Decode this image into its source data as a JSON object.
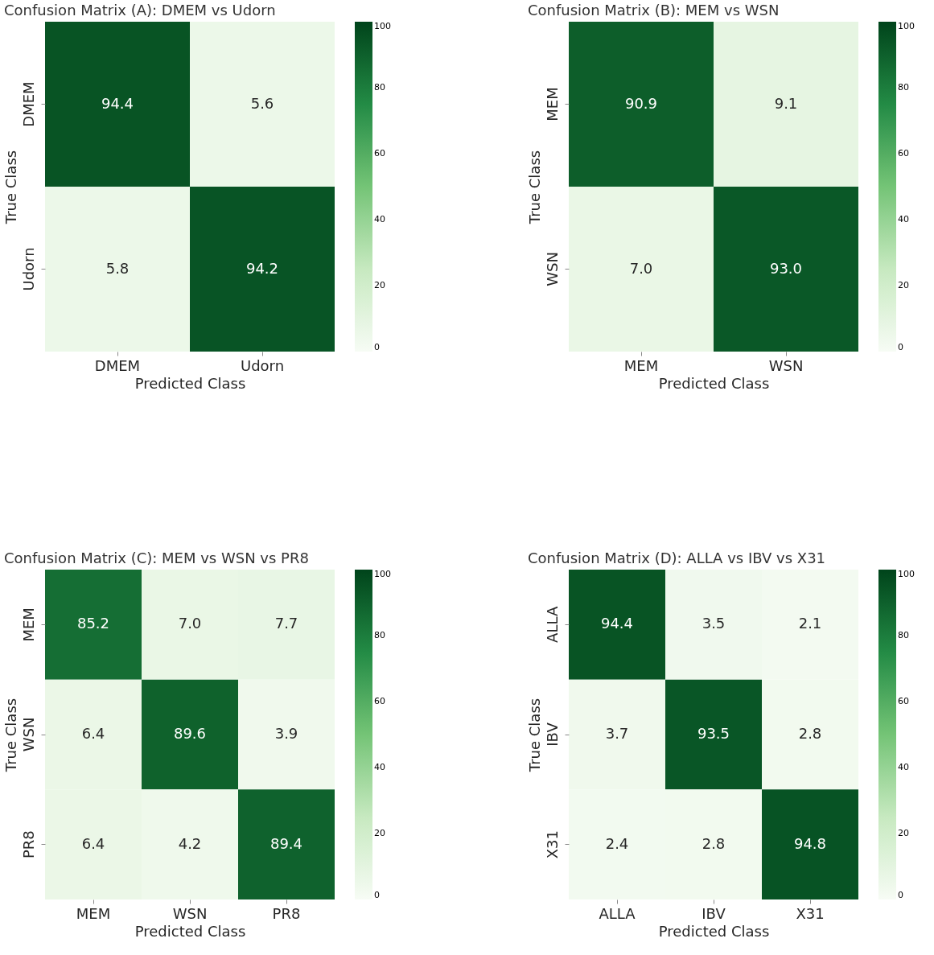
{
  "chart_data": [
    {
      "type": "heatmap",
      "title": "Confusion Matrix (A): DMEM vs Udorn",
      "xlabel": "Predicted Class",
      "ylabel": "True Class",
      "categories": [
        "DMEM",
        "Udorn"
      ],
      "y_categories": [
        "DMEM",
        "Udorn"
      ],
      "cells": [
        [
          94.4,
          5.6
        ],
        [
          5.8,
          94.2
        ]
      ],
      "cell_labels": [
        [
          "94.4",
          "5.6"
        ],
        [
          "5.8",
          "94.2"
        ]
      ],
      "clim": [
        0,
        100
      ],
      "cticks": [
        0,
        20,
        40,
        60,
        80,
        100
      ],
      "data_labels": true,
      "grid": false
    },
    {
      "type": "heatmap",
      "title": "Confusion Matrix (B): MEM vs WSN",
      "xlabel": "Predicted Class",
      "ylabel": "True Class",
      "categories": [
        "MEM",
        "WSN"
      ],
      "y_categories": [
        "MEM",
        "WSN"
      ],
      "cells": [
        [
          90.9,
          9.1
        ],
        [
          7.0,
          93.0
        ]
      ],
      "cell_labels": [
        [
          "90.9",
          "9.1"
        ],
        [
          "7.0",
          "93.0"
        ]
      ],
      "clim": [
        0,
        100
      ],
      "cticks": [
        0,
        20,
        40,
        60,
        80,
        100
      ],
      "data_labels": true,
      "grid": false
    },
    {
      "type": "heatmap",
      "title": "Confusion Matrix (C): MEM vs WSN vs PR8",
      "xlabel": "Predicted Class",
      "ylabel": "True Class",
      "categories": [
        "MEM",
        "WSN",
        "PR8"
      ],
      "y_categories": [
        "MEM",
        "WSN",
        "PR8"
      ],
      "cells": [
        [
          85.2,
          7.0,
          7.7
        ],
        [
          6.4,
          89.6,
          3.9
        ],
        [
          6.4,
          4.2,
          89.4
        ]
      ],
      "cell_labels": [
        [
          "85.2",
          "7.0",
          "7.7"
        ],
        [
          "6.4",
          "89.6",
          "3.9"
        ],
        [
          "6.4",
          "4.2",
          "89.4"
        ]
      ],
      "clim": [
        0,
        100
      ],
      "cticks": [
        0,
        20,
        40,
        60,
        80,
        100
      ],
      "data_labels": true,
      "grid": false
    },
    {
      "type": "heatmap",
      "title": "Confusion Matrix (D): ALLA vs IBV vs X31",
      "xlabel": "Predicted Class",
      "ylabel": "True Class",
      "categories": [
        "ALLA",
        "IBV",
        "X31"
      ],
      "y_categories": [
        "ALLA",
        "IBV",
        "X31"
      ],
      "cells": [
        [
          94.4,
          3.5,
          2.1
        ],
        [
          3.7,
          93.5,
          2.8
        ],
        [
          2.4,
          2.8,
          94.8
        ]
      ],
      "cell_labels": [
        [
          "94.4",
          "3.5",
          "2.1"
        ],
        [
          "3.7",
          "93.5",
          "2.8"
        ],
        [
          "2.4",
          "2.8",
          "94.8"
        ]
      ],
      "clim": [
        0,
        100
      ],
      "cticks": [
        0,
        20,
        40,
        60,
        80,
        100
      ],
      "data_labels": true,
      "grid": false
    }
  ]
}
